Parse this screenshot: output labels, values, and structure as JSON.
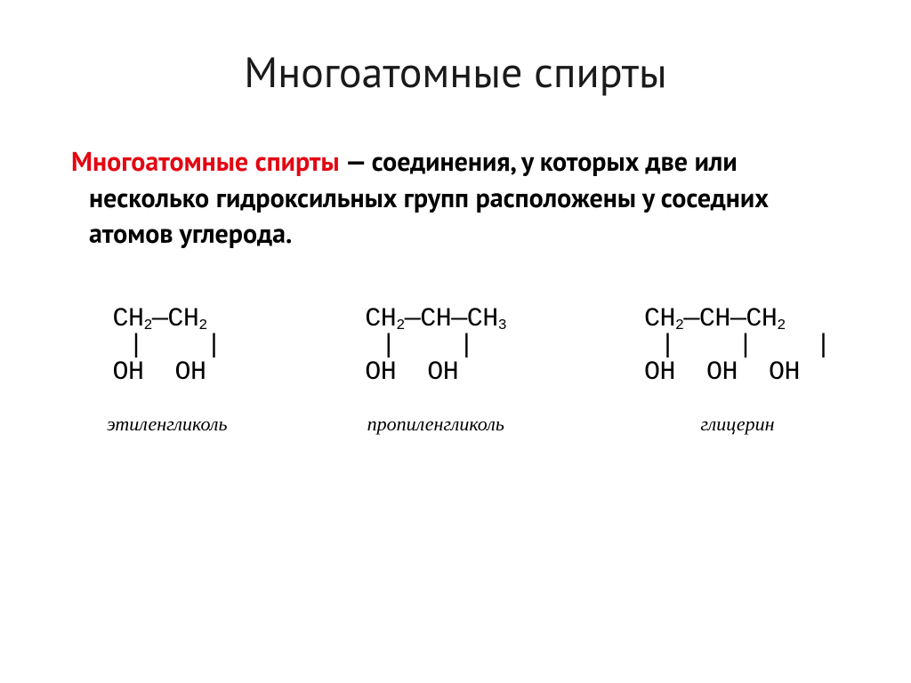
{
  "title": "Многоатомные спирты",
  "definition": {
    "term": "Многоатомные спирты",
    "dash": " — ",
    "text": "соединения, у которых две или несколько гидроксильных групп расположены у соседних атомов углерода."
  },
  "molecules": [
    {
      "name": "этиленгликоль",
      "formula_lines": {
        "top_segments": [
          [
            "CH",
            "2"
          ],
          [
            "—CH",
            "2"
          ]
        ],
        "mid": " |    |",
        "bot": "OH  OH"
      }
    },
    {
      "name": "пропиленгликоль",
      "formula_lines": {
        "top_segments": [
          [
            "CH",
            "2"
          ],
          [
            "—CH—CH",
            "3"
          ]
        ],
        "mid": " |    |",
        "bot": "OH  OH"
      }
    },
    {
      "name": "глицерин",
      "formula_lines": {
        "top_segments": [
          [
            "CH",
            "2"
          ],
          [
            "—CH—CH",
            "2"
          ]
        ],
        "mid": " |    |    |",
        "bot": "OH  OH  OH"
      }
    }
  ],
  "colors": {
    "term": "#e30613",
    "text": "#000000",
    "background": "#ffffff"
  },
  "fontsizes": {
    "title": 48,
    "definition": 30,
    "formula": 30,
    "name": 22
  }
}
